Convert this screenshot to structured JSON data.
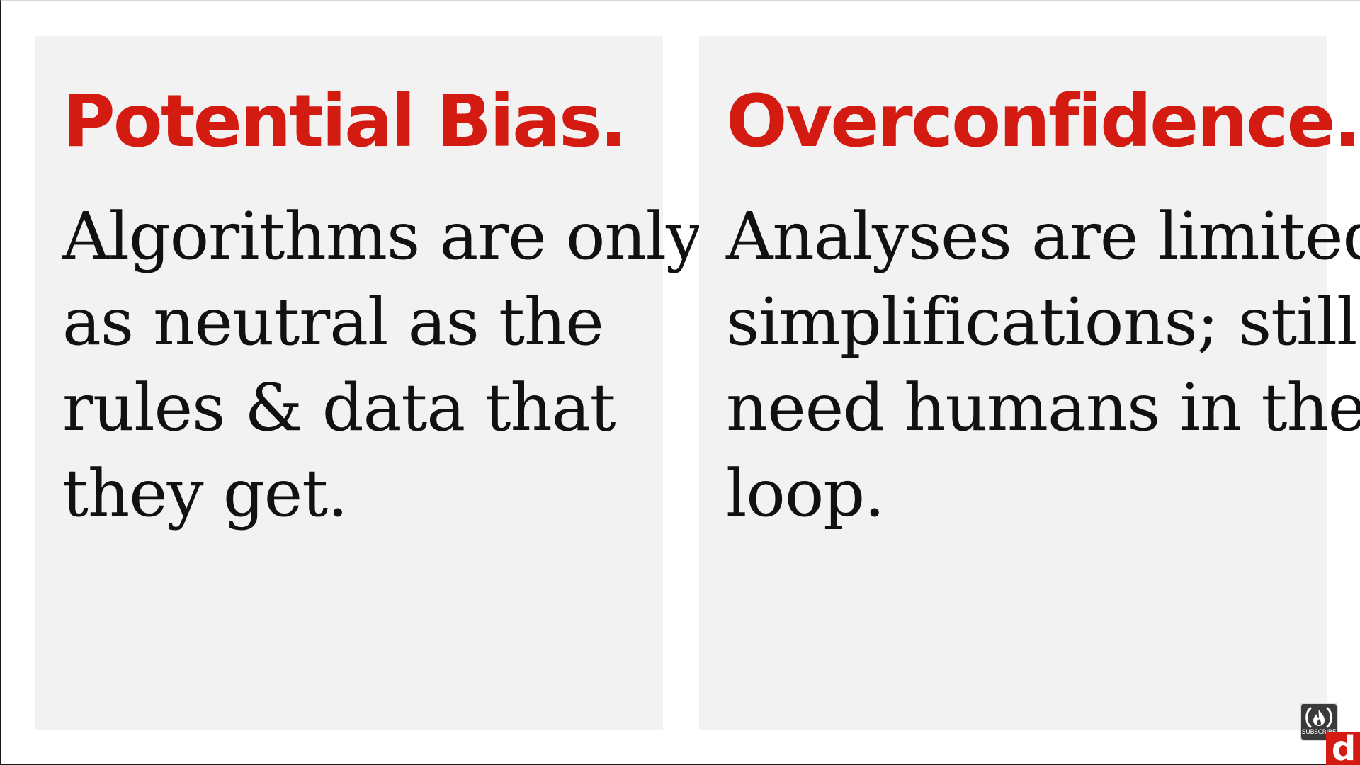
{
  "slide": {
    "panels": [
      {
        "heading": "Potential Bias.",
        "lines": [
          "Algorithms are only",
          "as neutral as the",
          "rules & data that",
          "they get."
        ]
      },
      {
        "heading": "Overconfidence.",
        "lines": [
          "Analyses are limited",
          "simplifications; still",
          "need humans in the",
          "loop."
        ]
      }
    ]
  },
  "overlay": {
    "subscribe_label": "SUBSCRIBE",
    "subscribe_icon": "flame-in-parentheses-icon",
    "logo_letter": "d"
  },
  "colors": {
    "heading": "#d31b12",
    "panel_background": "#f2f2f2",
    "page_background": "#ffffff",
    "body_text": "#111111",
    "logo_background": "#d31b12"
  }
}
